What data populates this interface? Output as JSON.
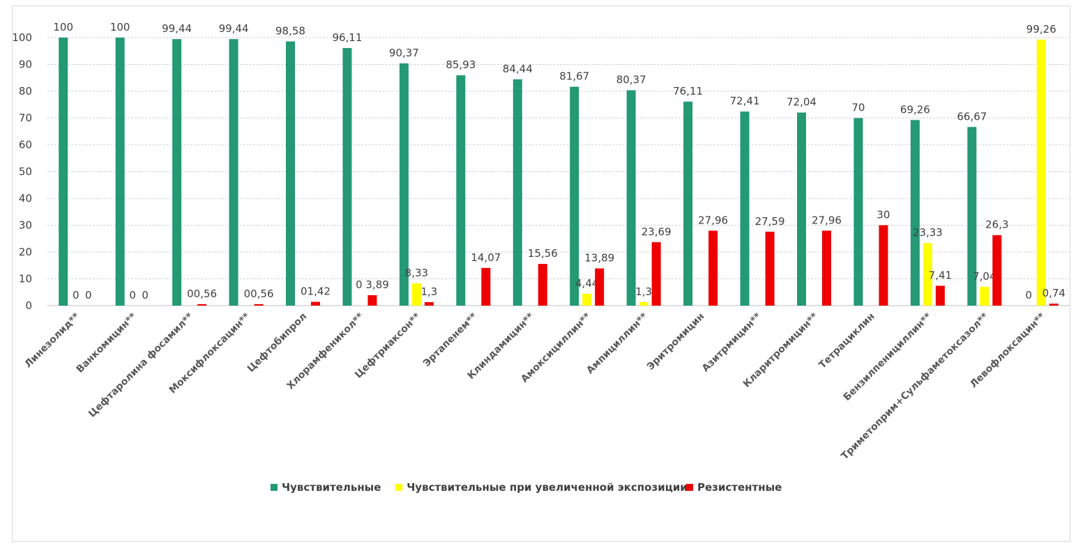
{
  "chart_data": {
    "type": "bar",
    "title": "",
    "xlabel": "",
    "ylabel": "",
    "ylim": [
      0,
      100
    ],
    "yticks": [
      0,
      10,
      20,
      30,
      40,
      50,
      60,
      70,
      80,
      90,
      100
    ],
    "grid": "horizontal",
    "legend_position": "bottom",
    "categories": [
      "Линезолид**",
      "Ванкомицин**",
      "Цефтаролина фосамил**",
      "Моксифлоксацин**",
      "Цефтобипрол",
      "Хлорамфеникол**",
      "Цефтриаксон**",
      "Эртапенем**",
      "Клиндамицин**",
      "Амоксициллин**",
      "Ампициллин**",
      "Эритромицин",
      "Азитрмицин**",
      "Кларитромицин**",
      "Тетрациклин",
      "Бензилпенициллин**",
      "Триметоприм+Сульфаметоксазол**",
      "Левофлоксацин**"
    ],
    "series": [
      {
        "name": "Чувствительные",
        "color": "#239974",
        "values": [
          100,
          100,
          99.44,
          99.44,
          98.58,
          96.11,
          90.37,
          85.93,
          84.44,
          81.67,
          80.37,
          76.11,
          72.41,
          72.04,
          70,
          69.26,
          66.67,
          null
        ],
        "labels": [
          "100",
          "100",
          "99,44",
          "99,44",
          "98,58",
          "96,11",
          "90,37",
          "85,93",
          "84,44",
          "81,67",
          "80,37",
          "76,11",
          "72,41",
          "72,04",
          "70",
          "69,26",
          "66,67",
          "0"
        ]
      },
      {
        "name": "Чувствительные при увеличенной экспозиции",
        "color": "#ffff00",
        "values": [
          0,
          0,
          null,
          null,
          null,
          null,
          8.33,
          null,
          null,
          4.44,
          1.3,
          null,
          null,
          null,
          null,
          23.33,
          7.04,
          99.26
        ],
        "labels": [
          "0",
          "0",
          "",
          "",
          "",
          "",
          "8,33",
          "",
          "",
          "4,44",
          "1,3",
          "",
          "",
          "",
          "",
          "23,33",
          "7,04",
          "99,26"
        ]
      },
      {
        "name": "Резистентные",
        "color": "#ee0000",
        "values": [
          0,
          0,
          0.56,
          0.56,
          1.42,
          3.89,
          1.3,
          14.07,
          15.56,
          13.89,
          23.69,
          27.96,
          27.59,
          27.96,
          30,
          7.41,
          26.3,
          0.74
        ],
        "labels": [
          "0",
          "0",
          "00,56",
          "00,56",
          "01,42",
          "0 3,89",
          "1,3",
          "14,07",
          "15,56",
          "13,89",
          "23,69",
          "27,96",
          "27,59",
          "27,96",
          "30",
          "7,41",
          "26,3",
          "0,74"
        ],
        "zero_prefix": [
          "",
          "",
          "",
          "",
          "",
          "",
          "",
          "0",
          "0",
          "",
          "",
          "0",
          "0",
          "0",
          "0",
          "",
          "",
          "0"
        ]
      }
    ]
  }
}
